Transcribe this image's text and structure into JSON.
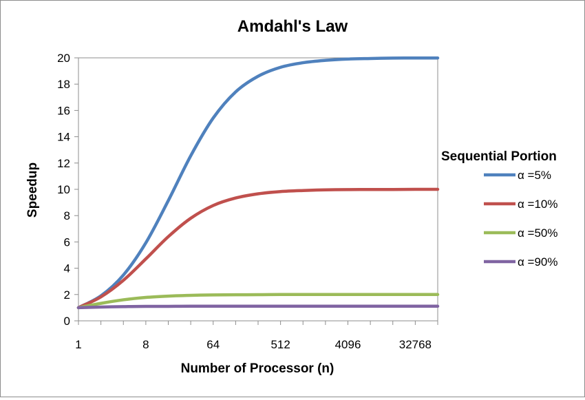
{
  "chart_data": {
    "type": "line",
    "title": "Amdahl's Law",
    "xlabel": "Number of Processor (n)",
    "ylabel": "Speedup",
    "x_scale": "log2",
    "x": [
      1,
      2,
      4,
      8,
      16,
      32,
      64,
      128,
      256,
      512,
      1024,
      2048,
      4096,
      8192,
      16384,
      32768,
      65536
    ],
    "x_tick_values": [
      1,
      8,
      64,
      512,
      4096,
      32768
    ],
    "x_tick_labels": [
      "1",
      "8",
      "64",
      "512",
      "4096",
      "32768"
    ],
    "xlim": [
      1,
      65536
    ],
    "ylim": [
      0,
      20
    ],
    "y_ticks": [
      0,
      2,
      4,
      6,
      8,
      10,
      12,
      14,
      16,
      18,
      20
    ],
    "grid": false,
    "legend_title": "Sequential Portion",
    "legend_position": "right",
    "series": [
      {
        "name": "α =5%",
        "color": "#4F81BD",
        "values": [
          1.0,
          1.9,
          3.48,
          5.93,
          9.14,
          12.55,
          15.42,
          17.41,
          18.6,
          19.28,
          19.63,
          19.81,
          19.91,
          19.95,
          19.98,
          19.99,
          19.99
        ]
      },
      {
        "name": "α =10%",
        "color": "#C0504D",
        "values": [
          1.0,
          1.82,
          3.08,
          4.71,
          6.4,
          7.8,
          8.77,
          9.34,
          9.66,
          9.83,
          9.91,
          9.96,
          9.98,
          9.99,
          9.99,
          10.0,
          10.0
        ]
      },
      {
        "name": "α =50%",
        "color": "#9BBB59",
        "values": [
          1.0,
          1.33,
          1.6,
          1.78,
          1.88,
          1.94,
          1.97,
          1.98,
          1.99,
          2.0,
          2.0,
          2.0,
          2.0,
          2.0,
          2.0,
          2.0,
          2.0
        ]
      },
      {
        "name": "α =90%",
        "color": "#8064A2",
        "values": [
          1.0,
          1.05,
          1.08,
          1.1,
          1.1,
          1.11,
          1.11,
          1.11,
          1.11,
          1.11,
          1.11,
          1.11,
          1.11,
          1.11,
          1.11,
          1.11,
          1.11
        ]
      }
    ]
  }
}
